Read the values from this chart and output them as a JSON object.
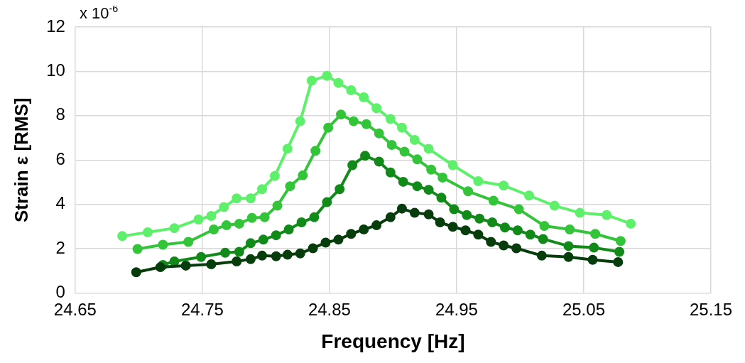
{
  "chart_data": {
    "type": "line",
    "xlabel": "Frequency [Hz]",
    "ylabel": "Strain ε [RMS]",
    "annotations": [
      "x 10$^{-6}$"
    ],
    "xlim": [
      24.65,
      25.15
    ],
    "xticks": [
      24.65,
      24.75,
      24.85,
      24.95,
      25.05,
      25.15
    ],
    "ylim": [
      0,
      12
    ],
    "yticks": [
      0,
      2,
      4,
      6,
      8,
      10,
      12
    ],
    "grid": true,
    "legend": false,
    "marker": "circle",
    "line_style": "solid",
    "series": [
      {
        "color": "#5ef06a",
        "x": [
          24.687,
          24.707,
          24.728,
          24.747,
          24.757,
          24.767,
          24.777,
          24.788,
          24.797,
          24.807,
          24.817,
          24.827,
          24.836,
          24.848,
          24.857,
          24.867,
          24.877,
          24.887,
          24.898,
          24.907,
          24.917,
          24.928,
          24.947,
          24.967,
          24.987,
          25.007,
          25.027,
          25.047,
          25.068,
          25.087
        ],
        "values": [
          2.57,
          2.74,
          2.93,
          3.32,
          3.48,
          3.88,
          4.27,
          4.27,
          4.69,
          5.28,
          6.51,
          7.75,
          9.58,
          9.8,
          9.48,
          9.15,
          8.83,
          8.34,
          7.85,
          7.46,
          6.91,
          6.51,
          5.77,
          5.05,
          4.85,
          4.4,
          3.94,
          3.62,
          3.52,
          3.13
        ]
      },
      {
        "color": "#33c43a",
        "x": [
          24.699,
          24.719,
          24.739,
          24.759,
          24.769,
          24.779,
          24.789,
          24.799,
          24.809,
          24.819,
          24.829,
          24.839,
          24.849,
          24.859,
          24.869,
          24.879,
          24.889,
          24.899,
          24.909,
          24.919,
          24.93,
          24.939,
          24.959,
          24.979,
          24.999,
          25.019,
          25.039,
          25.059,
          25.079
        ],
        "values": [
          1.99,
          2.18,
          2.31,
          2.87,
          3.06,
          3.13,
          3.39,
          3.42,
          3.94,
          4.82,
          5.31,
          6.42,
          7.46,
          8.05,
          7.75,
          7.62,
          7.2,
          6.68,
          6.38,
          6.03,
          5.57,
          5.21,
          4.59,
          4.17,
          3.78,
          3.03,
          2.87,
          2.67,
          2.35
        ]
      },
      {
        "color": "#118a1a",
        "x": [
          24.719,
          24.728,
          24.749,
          24.768,
          24.779,
          24.788,
          24.798,
          24.808,
          24.818,
          24.828,
          24.838,
          24.848,
          24.858,
          24.868,
          24.878,
          24.889,
          24.898,
          24.908,
          24.919,
          24.928,
          24.938,
          24.948,
          24.958,
          24.968,
          24.978,
          24.988,
          24.998,
          25.008,
          25.018,
          25.038,
          25.058,
          25.078
        ],
        "values": [
          1.27,
          1.43,
          1.63,
          1.82,
          1.86,
          2.25,
          2.41,
          2.61,
          2.87,
          3.19,
          3.42,
          4.1,
          4.69,
          5.77,
          6.19,
          5.93,
          5.44,
          5.02,
          4.82,
          4.66,
          4.3,
          3.78,
          3.52,
          3.36,
          3.19,
          2.96,
          2.83,
          2.64,
          2.44,
          2.12,
          2.05,
          1.86
        ]
      },
      {
        "color": "#073d0c",
        "x": [
          24.698,
          24.717,
          24.737,
          24.757,
          24.777,
          24.788,
          24.797,
          24.808,
          24.817,
          24.827,
          24.837,
          24.847,
          24.857,
          24.867,
          24.877,
          24.887,
          24.898,
          24.907,
          24.917,
          24.928,
          24.937,
          24.947,
          24.957,
          24.967,
          24.977,
          24.987,
          24.997,
          25.017,
          25.038,
          25.057,
          25.077
        ],
        "values": [
          0.94,
          1.17,
          1.24,
          1.3,
          1.43,
          1.53,
          1.69,
          1.66,
          1.73,
          1.79,
          2.02,
          2.28,
          2.41,
          2.67,
          2.87,
          3.06,
          3.42,
          3.81,
          3.62,
          3.55,
          3.19,
          2.99,
          2.83,
          2.64,
          2.31,
          2.15,
          2.02,
          1.69,
          1.63,
          1.5,
          1.4
        ]
      }
    ]
  }
}
